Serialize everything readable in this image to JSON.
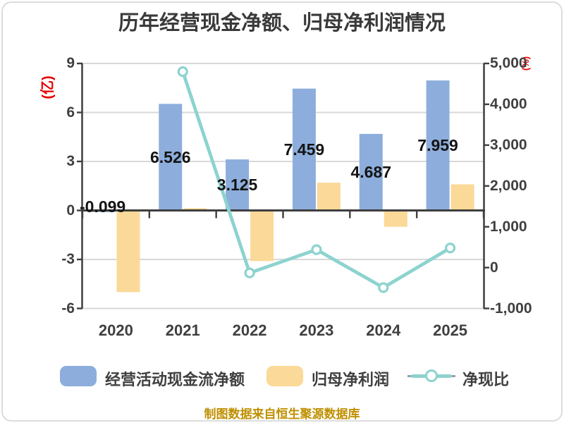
{
  "page": {
    "title": "历年经营现金净额、归母净利润情况",
    "source_note": "制图数据来自恒生聚源数据库"
  },
  "chart_data": {
    "type": "bar",
    "subtype": "dual-axis bar + line",
    "title": "历年经营现金净额、归母净利润情况",
    "categories": [
      "2020",
      "2021",
      "2022",
      "2023",
      "2024",
      "2025"
    ],
    "series": [
      {
        "name": "经营活动现金流净额",
        "type": "bar",
        "axis": "left",
        "color": "#8daedc",
        "values": [
          -0.099,
          6.526,
          3.125,
          7.459,
          4.687,
          7.959
        ],
        "data_labels": [
          "-0.099",
          "6.526",
          "3.125",
          "7.459",
          "4.687",
          "7.959"
        ]
      },
      {
        "name": "归母净利润",
        "type": "bar",
        "axis": "left",
        "color": "#fbd998",
        "values": [
          -5.0,
          0.14,
          -3.1,
          1.7,
          -1.0,
          1.6
        ]
      },
      {
        "name": "净现比",
        "type": "line",
        "axis": "right",
        "color": "#8dd3cf",
        "marker": "circle-white-fill",
        "values": [
          null,
          4800,
          -130,
          440,
          -490,
          480
        ]
      }
    ],
    "left_axis": {
      "unit": "(亿)",
      "unit_color": "#e60000",
      "max": 9,
      "min": -6,
      "tick_values": [
        9,
        6,
        3,
        0,
        -3,
        -6
      ],
      "ticks": [
        "9",
        "6",
        "3",
        "0",
        "-3",
        "-6"
      ]
    },
    "right_axis": {
      "unit": "(%)",
      "unit_color": "#e60000",
      "max": 5000,
      "min": -1000,
      "tick_values": [
        5000,
        4000,
        3000,
        2000,
        1000,
        0,
        -1000
      ],
      "ticks": [
        "5,000",
        "4,000",
        "3,000",
        "2,000",
        "1,000",
        "0",
        "-1,000"
      ]
    },
    "legend": {
      "position": "bottom",
      "items": [
        "经营活动现金流净额",
        "归母净利润",
        "净现比"
      ]
    },
    "grid": "horizontal lines at left-axis ticks",
    "colors": {
      "axis_text": "#3f3f3f",
      "axis_line": "#3f3f3f",
      "grid_line": "#d8d8d8",
      "bar_label": "#141414",
      "title": "#3a3a3a",
      "source_note": "#bf8f00"
    }
  }
}
